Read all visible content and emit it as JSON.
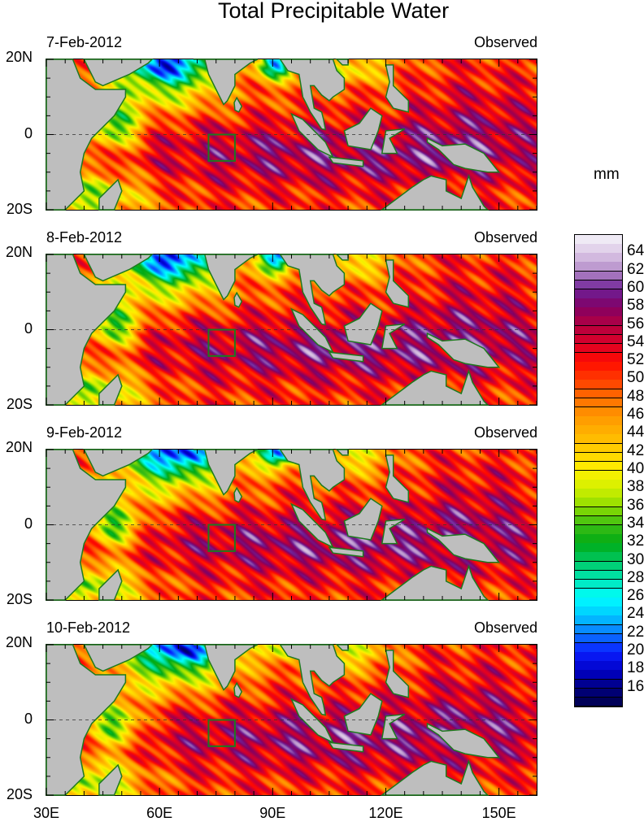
{
  "title": "Total Precipitable Water",
  "units": "mm",
  "panels": [
    {
      "date": "7-Feb-2012",
      "label": "Observed",
      "day": 0
    },
    {
      "date": "8-Feb-2012",
      "label": "Observed",
      "day": 1
    },
    {
      "date": "9-Feb-2012",
      "label": "Observed",
      "day": 2
    },
    {
      "date": "10-Feb-2012",
      "label": "Observed",
      "day": 3
    }
  ],
  "lat_labels": [
    "20N",
    "0",
    "20S"
  ],
  "lon_labels": [
    "30E",
    "60E",
    "90E",
    "120E",
    "150E"
  ],
  "map_extent": {
    "lon": [
      30,
      160
    ],
    "lat": [
      -20,
      20
    ]
  },
  "colorbar": {
    "labels": [
      "64",
      "62",
      "60",
      "58",
      "56",
      "54",
      "52",
      "50",
      "48",
      "46",
      "44",
      "42",
      "40",
      "38",
      "36",
      "34",
      "32",
      "30",
      "28",
      "26",
      "24",
      "22",
      "20",
      "18",
      "16"
    ],
    "range": [
      14,
      66
    ],
    "stops": [
      [
        14,
        "#00004a"
      ],
      [
        16,
        "#000080"
      ],
      [
        18,
        "#0000c8"
      ],
      [
        20,
        "#0a1eff"
      ],
      [
        22,
        "#0a78ff"
      ],
      [
        24,
        "#00c8ff"
      ],
      [
        26,
        "#00ffff"
      ],
      [
        28,
        "#00e6b4"
      ],
      [
        30,
        "#00c864"
      ],
      [
        32,
        "#00aa14"
      ],
      [
        34,
        "#3cbe14"
      ],
      [
        36,
        "#8cdc00"
      ],
      [
        38,
        "#d2f000"
      ],
      [
        40,
        "#fff000"
      ],
      [
        42,
        "#ffd200"
      ],
      [
        44,
        "#ffb400"
      ],
      [
        46,
        "#ff9600"
      ],
      [
        48,
        "#ff6e00"
      ],
      [
        50,
        "#ff3c00"
      ],
      [
        52,
        "#ff0a00"
      ],
      [
        54,
        "#dc0028"
      ],
      [
        56,
        "#b40040"
      ],
      [
        58,
        "#820064"
      ],
      [
        60,
        "#6e2096"
      ],
      [
        62,
        "#b48cc8"
      ],
      [
        64,
        "#dcc8e6"
      ],
      [
        66,
        "#f5f5fa"
      ]
    ]
  },
  "colors": {
    "land": "#bebebe",
    "coast": "#1e7a1e",
    "box": "#1e7a1e"
  }
}
